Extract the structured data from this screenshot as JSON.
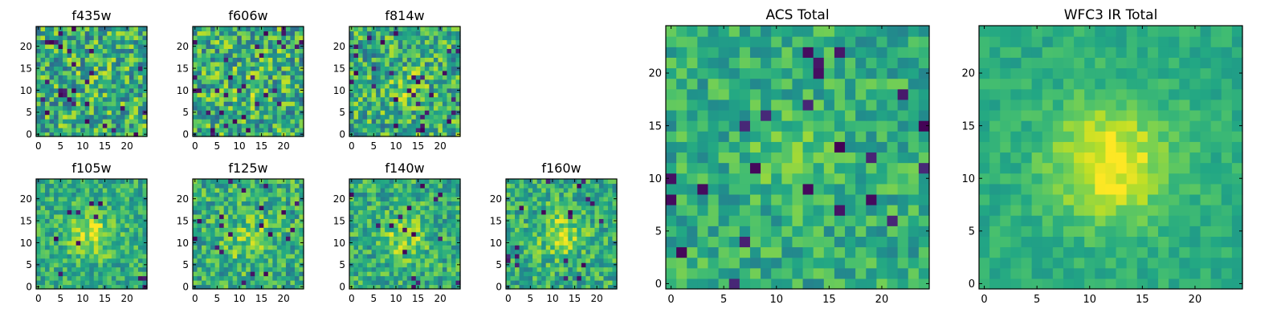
{
  "figure": {
    "colormap": "viridis",
    "background": "#ffffff"
  },
  "chart_data": [
    {
      "type": "heatmap",
      "title": "f435w",
      "xticks": [
        "0",
        "5",
        "10",
        "15",
        "20"
      ],
      "yticks": [
        "0",
        "5",
        "10",
        "15",
        "20"
      ],
      "grid_size": 25,
      "xlim": [
        0,
        24
      ],
      "ylim": [
        0,
        24
      ],
      "center": [
        12,
        11
      ],
      "peak": 0.08,
      "sigma": 4,
      "noise": 0.85,
      "outliers": 0.04,
      "seed": 11
    },
    {
      "type": "heatmap",
      "title": "f606w",
      "xticks": [
        "0",
        "5",
        "10",
        "15",
        "20"
      ],
      "yticks": [
        "0",
        "5",
        "10",
        "15",
        "20"
      ],
      "grid_size": 25,
      "xlim": [
        0,
        24
      ],
      "ylim": [
        0,
        24
      ],
      "center": [
        12,
        11
      ],
      "peak": 0.25,
      "sigma": 3,
      "noise": 0.85,
      "outliers": 0.05,
      "seed": 23
    },
    {
      "type": "heatmap",
      "title": "f814w",
      "xticks": [
        "0",
        "5",
        "10",
        "15",
        "20"
      ],
      "yticks": [
        "0",
        "5",
        "10",
        "15",
        "20"
      ],
      "grid_size": 25,
      "xlim": [
        0,
        24
      ],
      "ylim": [
        0,
        24
      ],
      "center": [
        12,
        11
      ],
      "peak": 0.4,
      "sigma": 3,
      "noise": 0.8,
      "outliers": 0.04,
      "seed": 37
    },
    {
      "type": "heatmap",
      "title": "f105w",
      "xticks": [
        "0",
        "5",
        "10",
        "15",
        "20"
      ],
      "yticks": [
        "0",
        "5",
        "10",
        "15",
        "20"
      ],
      "grid_size": 25,
      "xlim": [
        0,
        24
      ],
      "ylim": [
        0,
        24
      ],
      "center": [
        12,
        12
      ],
      "peak": 0.75,
      "sigma": 3.5,
      "noise": 0.55,
      "outliers": 0.02,
      "seed": 41
    },
    {
      "type": "heatmap",
      "title": "f125w",
      "xticks": [
        "0",
        "5",
        "10",
        "15",
        "20"
      ],
      "yticks": [
        "0",
        "5",
        "10",
        "15",
        "20"
      ],
      "grid_size": 25,
      "xlim": [
        0,
        24
      ],
      "ylim": [
        0,
        24
      ],
      "center": [
        12,
        11
      ],
      "peak": 0.45,
      "sigma": 4,
      "noise": 0.65,
      "outliers": 0.03,
      "seed": 53
    },
    {
      "type": "heatmap",
      "title": "f140w",
      "xticks": [
        "0",
        "5",
        "10",
        "15",
        "20"
      ],
      "yticks": [
        "0",
        "5",
        "10",
        "15",
        "20"
      ],
      "grid_size": 25,
      "xlim": [
        0,
        24
      ],
      "ylim": [
        0,
        24
      ],
      "center": [
        12,
        11
      ],
      "peak": 0.6,
      "sigma": 3.5,
      "noise": 0.6,
      "outliers": 0.03,
      "seed": 67
    },
    {
      "type": "heatmap",
      "title": "f160w",
      "xticks": [
        "0",
        "5",
        "10",
        "15",
        "20"
      ],
      "yticks": [
        "0",
        "5",
        "10",
        "15",
        "20"
      ],
      "grid_size": 25,
      "xlim": [
        0,
        24
      ],
      "ylim": [
        0,
        24
      ],
      "center": [
        12,
        12
      ],
      "peak": 0.65,
      "sigma": 3.5,
      "noise": 0.6,
      "outliers": 0.03,
      "seed": 79
    },
    {
      "type": "heatmap",
      "title": "ACS Total",
      "xticks": [
        "0",
        "5",
        "10",
        "15",
        "20"
      ],
      "yticks": [
        "0",
        "5",
        "10",
        "15",
        "20"
      ],
      "grid_size": 25,
      "xlim": [
        0,
        24
      ],
      "ylim": [
        0,
        24
      ],
      "center": [
        12,
        12
      ],
      "peak": 0.45,
      "sigma": 3,
      "noise": 0.5,
      "outliers": 0.04,
      "seed": 97
    },
    {
      "type": "heatmap",
      "title": "WFC3 IR Total",
      "xticks": [
        "0",
        "5",
        "10",
        "15",
        "20"
      ],
      "yticks": [
        "0",
        "5",
        "10",
        "15",
        "20"
      ],
      "grid_size": 25,
      "xlim": [
        0,
        24
      ],
      "ylim": [
        0,
        24
      ],
      "center": [
        12,
        11.5
      ],
      "peak": 1.0,
      "sigma": 4,
      "noise": 0.25,
      "outliers": 0.0,
      "seed": 113
    }
  ]
}
